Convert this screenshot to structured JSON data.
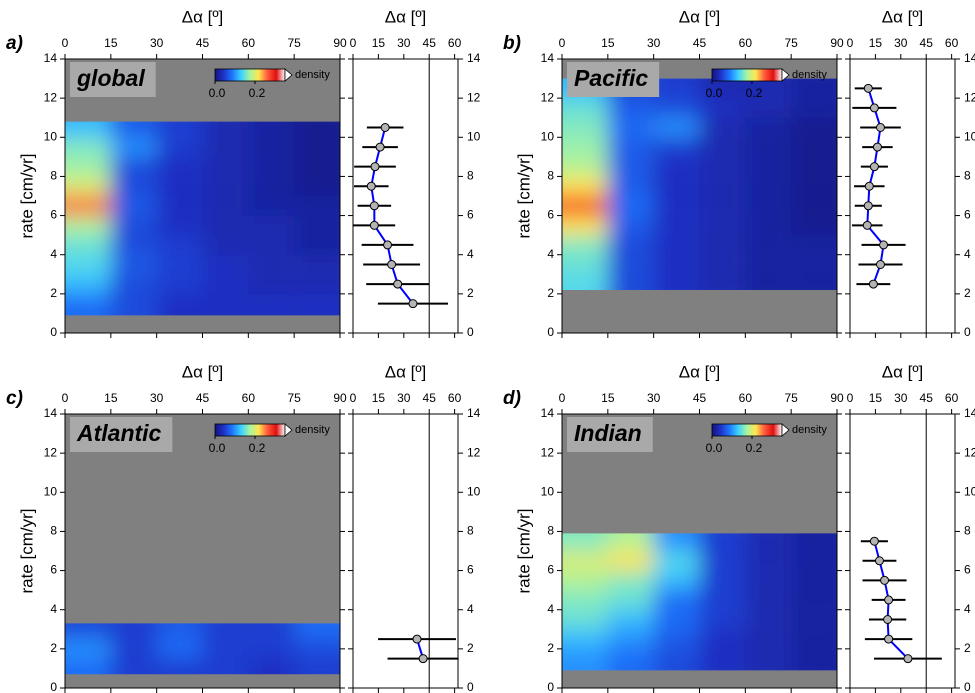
{
  "chart_data": [
    {
      "type": "heatmap",
      "panel_label": "a)",
      "label": "global",
      "xlabel": "Δα [º]",
      "ylabel": "rate [cm/yr]",
      "xlim": [
        0,
        90
      ],
      "xticks": [
        0,
        15,
        30,
        45,
        60,
        75,
        90
      ],
      "ylim": [
        0,
        14
      ],
      "yticks": [
        0,
        2,
        4,
        6,
        8,
        10,
        12,
        14
      ],
      "x_bins": [
        0,
        15,
        30,
        45,
        60,
        75,
        90
      ],
      "y_bins": [
        0.9,
        2,
        3,
        4,
        5,
        6,
        7,
        8,
        9,
        10,
        10.8
      ],
      "values": [
        [
          0.08,
          0.06,
          0.04,
          0.04,
          0.04,
          0.04
        ],
        [
          0.12,
          0.06,
          0.05,
          0.04,
          0.03,
          0.03
        ],
        [
          0.14,
          0.07,
          0.05,
          0.04,
          0.03,
          0.03
        ],
        [
          0.15,
          0.06,
          0.05,
          0.03,
          0.03,
          0.02
        ],
        [
          0.18,
          0.06,
          0.04,
          0.03,
          0.03,
          0.02
        ],
        [
          0.26,
          0.07,
          0.04,
          0.03,
          0.02,
          0.02
        ],
        [
          0.2,
          0.06,
          0.04,
          0.03,
          0.02,
          0.01
        ],
        [
          0.17,
          0.06,
          0.04,
          0.03,
          0.02,
          0.01
        ],
        [
          0.16,
          0.1,
          0.05,
          0.03,
          0.02,
          0.01
        ],
        [
          0.12,
          0.07,
          0.05,
          0.03,
          0.02,
          0.01
        ]
      ],
      "colorbar": {
        "label": "density",
        "clim": [
          0,
          0.35
        ],
        "ticks": [
          {
            "value": 0,
            "label": "0.0"
          },
          {
            "value": 0.2,
            "label": "0.2"
          }
        ]
      },
      "colormap": [
        "#14147e",
        "#1e32c8",
        "#1e78ff",
        "#3cd2ff",
        "#a8f5a0",
        "#ffe650",
        "#ff5a3c",
        "#e01010",
        "#ffffff"
      ],
      "background": "#808080"
    },
    {
      "type": "errorbar",
      "xlabel": "Δα [º]",
      "xlim": [
        0,
        62
      ],
      "xticks": [
        0,
        15,
        30,
        45,
        60
      ],
      "ylim": [
        0,
        14
      ],
      "yticks": [
        0,
        2,
        4,
        6,
        8,
        10,
        12,
        14
      ],
      "vline": 45,
      "x": [
        19,
        16,
        13,
        10.8,
        12.6,
        12.6,
        20.4,
        22.8,
        26.4,
        35.4
      ],
      "y": [
        10.5,
        9.5,
        8.5,
        7.5,
        6.5,
        5.5,
        4.5,
        3.5,
        2.5,
        1.5
      ],
      "xerr": [
        10.8,
        10.5,
        12.3,
        10.2,
        9.9,
        12.3,
        15.3,
        16.8,
        18.6,
        20.7
      ],
      "color": "#0000ff",
      "marker_color": "#b4b4b4"
    },
    {
      "type": "heatmap",
      "panel_label": "b)",
      "label": "Pacific",
      "xlabel": "Δα [º]",
      "ylabel": "rate [cm/yr]",
      "xlim": [
        0,
        90
      ],
      "xticks": [
        0,
        15,
        30,
        45,
        60,
        75,
        90
      ],
      "ylim": [
        0,
        14
      ],
      "yticks": [
        0,
        2,
        4,
        6,
        8,
        10,
        12,
        14
      ],
      "x_bins": [
        0,
        15,
        30,
        45,
        60,
        75,
        90
      ],
      "y_bins": [
        2.2,
        3,
        4,
        5,
        6,
        7,
        8,
        9,
        10,
        11,
        12,
        13
      ],
      "values": [
        [
          0.14,
          0.06,
          0.04,
          0.03,
          0.02,
          0.02
        ],
        [
          0.15,
          0.06,
          0.04,
          0.03,
          0.02,
          0.02
        ],
        [
          0.16,
          0.06,
          0.04,
          0.03,
          0.02,
          0.02
        ],
        [
          0.22,
          0.07,
          0.04,
          0.03,
          0.02,
          0.01
        ],
        [
          0.28,
          0.08,
          0.04,
          0.03,
          0.02,
          0.01
        ],
        [
          0.22,
          0.07,
          0.04,
          0.03,
          0.02,
          0.01
        ],
        [
          0.18,
          0.07,
          0.04,
          0.03,
          0.02,
          0.01
        ],
        [
          0.17,
          0.07,
          0.05,
          0.03,
          0.02,
          0.01
        ],
        [
          0.16,
          0.08,
          0.1,
          0.03,
          0.02,
          0.01
        ],
        [
          0.15,
          0.07,
          0.06,
          0.04,
          0.03,
          0.02
        ],
        [
          0.12,
          0.06,
          0.05,
          0.03,
          0.03,
          0.02
        ]
      ],
      "colorbar": {
        "label": "density",
        "clim": [
          0,
          0.35
        ],
        "ticks": [
          {
            "value": 0,
            "label": "0.0"
          },
          {
            "value": 0.2,
            "label": "0.2"
          }
        ]
      },
      "colormap": [
        "#14147e",
        "#1e32c8",
        "#1e78ff",
        "#3cd2ff",
        "#a8f5a0",
        "#ffe650",
        "#ff5a3c",
        "#e01010",
        "#ffffff"
      ],
      "background": "#808080"
    },
    {
      "type": "errorbar",
      "xlabel": "Δα [º]",
      "xlim": [
        0,
        62
      ],
      "xticks": [
        0,
        15,
        30,
        45,
        60
      ],
      "ylim": [
        0,
        14
      ],
      "yticks": [
        0,
        2,
        4,
        6,
        8,
        10,
        12,
        14
      ],
      "vline": 45,
      "x": [
        10.8,
        14.4,
        18,
        16.2,
        14.4,
        11.4,
        10.8,
        10.2,
        19.8,
        18,
        13.8
      ],
      "y": [
        12.5,
        11.5,
        10.5,
        9.5,
        8.5,
        7.5,
        6.5,
        5.5,
        4.5,
        3.5,
        2.5
      ],
      "xerr": [
        8,
        13,
        12,
        9,
        8,
        9,
        8,
        9,
        13,
        13,
        10
      ],
      "color": "#0000ff",
      "marker_color": "#b4b4b4"
    },
    {
      "type": "heatmap",
      "panel_label": "c)",
      "label": "Atlantic",
      "xlabel": "Δα [º]",
      "ylabel": "rate [cm/yr]",
      "xlim": [
        0,
        90
      ],
      "xticks": [
        0,
        15,
        30,
        45,
        60,
        75,
        90
      ],
      "ylim": [
        0,
        14
      ],
      "yticks": [
        0,
        2,
        4,
        6,
        8,
        10,
        12,
        14
      ],
      "x_bins": [
        0,
        15,
        30,
        45,
        60,
        75,
        90
      ],
      "y_bins": [
        0.7,
        1.5,
        2.5,
        3.3
      ],
      "values": [
        [
          0.08,
          0.05,
          0.05,
          0.05,
          0.04,
          0.05
        ],
        [
          0.1,
          0.05,
          0.08,
          0.05,
          0.05,
          0.06
        ],
        [
          0.06,
          0.05,
          0.07,
          0.05,
          0.05,
          0.08
        ]
      ],
      "colorbar": {
        "label": "density",
        "clim": [
          0,
          0.35
        ],
        "ticks": [
          {
            "value": 0,
            "label": "0.0"
          },
          {
            "value": 0.2,
            "label": "0.2"
          }
        ]
      },
      "colormap": [
        "#14147e",
        "#1e32c8",
        "#1e78ff",
        "#3cd2ff",
        "#a8f5a0",
        "#ffe650",
        "#ff5a3c",
        "#e01010",
        "#ffffff"
      ],
      "background": "#808080"
    },
    {
      "type": "errorbar",
      "xlabel": "Δα [º]",
      "xlim": [
        0,
        62
      ],
      "xticks": [
        0,
        15,
        30,
        45,
        60
      ],
      "ylim": [
        0,
        14
      ],
      "yticks": [
        0,
        2,
        4,
        6,
        8,
        10,
        12,
        14
      ],
      "vline": 45,
      "x": [
        37.8,
        41.4
      ],
      "y": [
        2.5,
        1.5
      ],
      "xerr": [
        23,
        21
      ],
      "color": "#0000ff",
      "marker_color": "#b4b4b4"
    },
    {
      "type": "heatmap",
      "panel_label": "d)",
      "label": "Indian",
      "xlabel": "Δα [º]",
      "ylabel": "rate [cm/yr]",
      "xlim": [
        0,
        90
      ],
      "xticks": [
        0,
        15,
        30,
        45,
        60,
        75,
        90
      ],
      "ylim": [
        0,
        14
      ],
      "yticks": [
        0,
        2,
        4,
        6,
        8,
        10,
        12,
        14
      ],
      "x_bins": [
        0,
        15,
        30,
        45,
        60,
        75,
        90
      ],
      "y_bins": [
        0.9,
        2,
        3,
        4,
        5,
        6,
        7,
        7.9
      ],
      "values": [
        [
          0.1,
          0.08,
          0.06,
          0.04,
          0.03,
          0.02
        ],
        [
          0.12,
          0.1,
          0.07,
          0.04,
          0.03,
          0.02
        ],
        [
          0.15,
          0.12,
          0.08,
          0.05,
          0.03,
          0.02
        ],
        [
          0.16,
          0.15,
          0.08,
          0.05,
          0.03,
          0.02
        ],
        [
          0.18,
          0.16,
          0.12,
          0.05,
          0.03,
          0.02
        ],
        [
          0.2,
          0.22,
          0.14,
          0.05,
          0.03,
          0.02
        ],
        [
          0.16,
          0.18,
          0.1,
          0.05,
          0.03,
          0.02
        ]
      ],
      "colorbar": {
        "label": "density",
        "clim": [
          0,
          0.35
        ],
        "ticks": [
          {
            "value": 0,
            "label": "0.0"
          },
          {
            "value": 0.2,
            "label": "0.2"
          }
        ]
      },
      "colormap": [
        "#14147e",
        "#1e32c8",
        "#1e78ff",
        "#3cd2ff",
        "#a8f5a0",
        "#ffe650",
        "#ff5a3c",
        "#e01010",
        "#ffffff"
      ],
      "background": "#808080"
    },
    {
      "type": "errorbar",
      "xlabel": "Δα [º]",
      "xlim": [
        0,
        62
      ],
      "xticks": [
        0,
        15,
        30,
        45,
        60
      ],
      "ylim": [
        0,
        14
      ],
      "yticks": [
        0,
        2,
        4,
        6,
        8,
        10,
        12,
        14
      ],
      "vline": 45,
      "x": [
        14.4,
        17.4,
        20.4,
        22.8,
        22.2,
        22.8,
        34.2
      ],
      "y": [
        7.5,
        6.5,
        5.5,
        4.5,
        3.5,
        2.5,
        1.5
      ],
      "xerr": [
        8,
        10,
        13,
        10,
        11,
        14,
        20
      ],
      "color": "#0000ff",
      "marker_color": "#b4b4b4"
    }
  ]
}
